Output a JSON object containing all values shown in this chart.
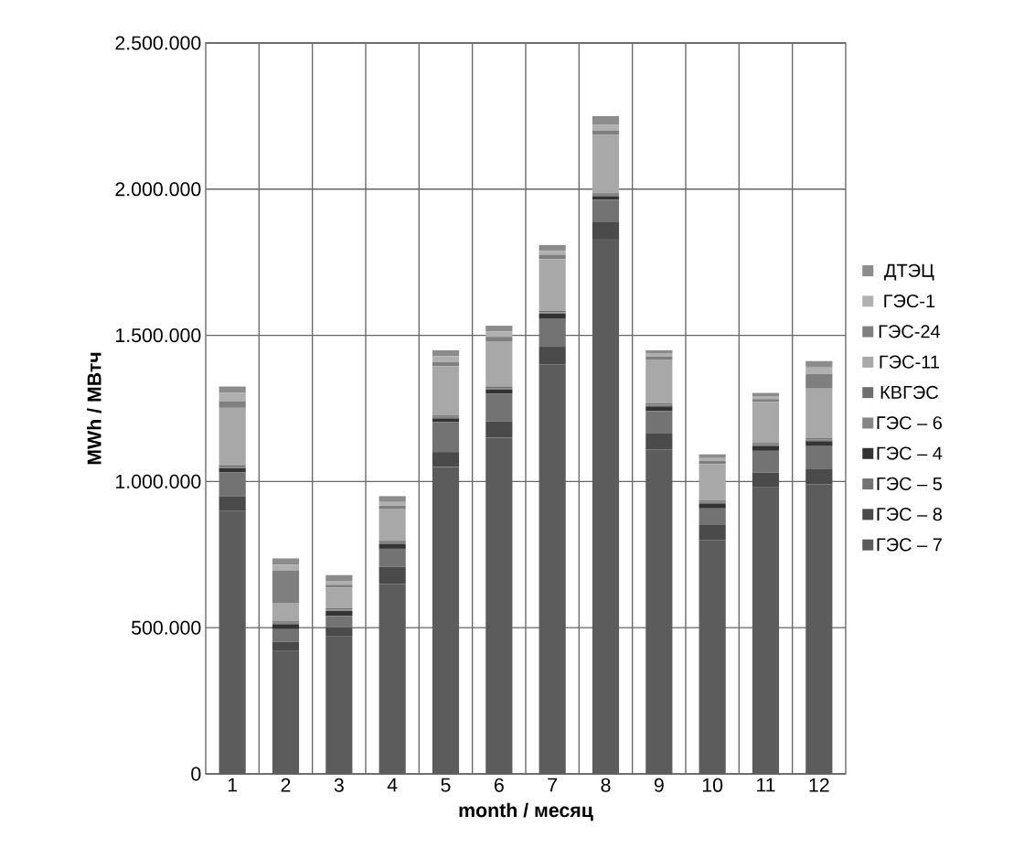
{
  "chart_data": {
    "type": "bar",
    "stacked": true,
    "xlabel": "month / месяц",
    "ylabel": "MWh / МВтч",
    "categories": [
      "1",
      "2",
      "3",
      "4",
      "5",
      "6",
      "7",
      "8",
      "9",
      "10",
      "11",
      "12"
    ],
    "ylim": [
      0,
      2500000
    ],
    "yticks": [
      0,
      {
        "value": 500000,
        "label": "500.000"
      },
      {
        "value": 1000000,
        "label": "1.000.000"
      },
      {
        "value": 1500000,
        "label": "1.500.000"
      },
      {
        "value": 2000000,
        "label": "2.000.000"
      },
      {
        "value": 2500000,
        "label": "2.500.000"
      }
    ],
    "grid": true,
    "legend": "right",
    "series": [
      {
        "name": "ГЭС – 7",
        "color": "#5c5c5c",
        "values": [
          900000,
          420000,
          470000,
          650000,
          1050000,
          1150000,
          1400000,
          1830000,
          1110000,
          800000,
          980000,
          990000
        ]
      },
      {
        "name": "ГЭС – 8",
        "color": "#4a4a4a",
        "values": [
          50000,
          31000,
          31000,
          58000,
          51000,
          56000,
          61000,
          59000,
          54000,
          51000,
          50000,
          54000
        ]
      },
      {
        "name": "ГЭС – 5",
        "color": "#737373",
        "values": [
          81000,
          44000,
          39000,
          62000,
          102000,
          94000,
          95000,
          75000,
          77000,
          57000,
          75000,
          77000
        ]
      },
      {
        "name": "ГЭС – 4",
        "color": "#333333",
        "values": [
          14000,
          17000,
          17000,
          17000,
          13000,
          15000,
          18000,
          12000,
          16000,
          17000,
          17000,
          17000
        ]
      },
      {
        "name": "ГЭС – 6",
        "color": "#858585",
        "values": [
          6000,
          5000,
          5000,
          5000,
          5000,
          5000,
          5000,
          5000,
          5000,
          5000,
          5000,
          5000
        ]
      },
      {
        "name": "КВГЭС",
        "color": "#6e6e6e",
        "values": [
          5000,
          5000,
          5000,
          5000,
          5000,
          5000,
          5000,
          5000,
          5000,
          5000,
          5000,
          5000
        ]
      },
      {
        "name": "ГЭС-11",
        "color": "#a8a8a8",
        "values": [
          196000,
          63000,
          70000,
          110000,
          168000,
          155000,
          177000,
          200000,
          150000,
          125000,
          140000,
          170000
        ]
      },
      {
        "name": "ГЭС-24",
        "color": "#7f7f7f",
        "values": [
          23000,
          110000,
          10000,
          10000,
          15000,
          15000,
          15000,
          15000,
          10000,
          10000,
          10000,
          50000
        ]
      },
      {
        "name": "ГЭС-1",
        "color": "#b0b0b0",
        "values": [
          28000,
          20000,
          13000,
          13000,
          20000,
          18000,
          13000,
          20000,
          10000,
          10000,
          10000,
          22000
        ]
      },
      {
        "name": "ДТЭЦ",
        "color": "#8c8c8c",
        "values": [
          22000,
          22000,
          20000,
          20000,
          20000,
          20000,
          20000,
          29000,
          12000,
          13000,
          11000,
          22000
        ]
      }
    ]
  }
}
